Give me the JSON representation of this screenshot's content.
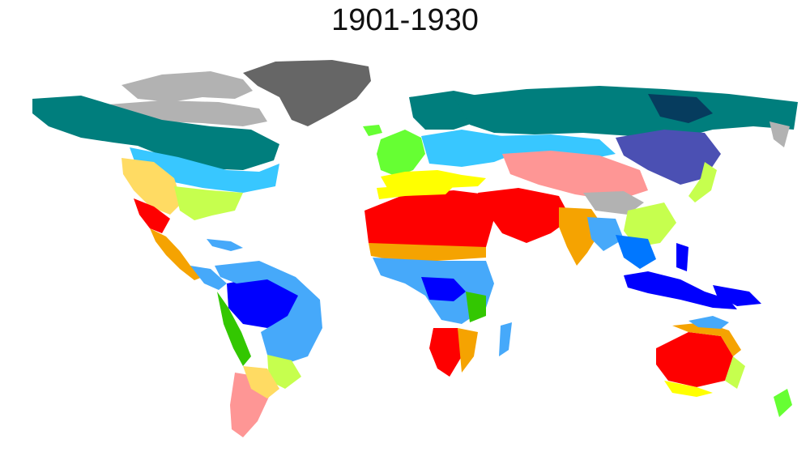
{
  "title": "1901-1930",
  "colors": {
    "background": "#ffffff",
    "tropical_rainforest": "#0000fe",
    "tropical_monsoon": "#0077ff",
    "tropical_savanna": "#46a9fa",
    "hot_desert": "#fe0000",
    "cold_desert": "#fe9695",
    "hot_steppe": "#f5a301",
    "cold_steppe": "#ffdb63",
    "mediterranean": "#ffff00",
    "humid_subtropical": "#c6ff4e",
    "oceanic": "#66ff33",
    "subtropical_highland": "#33c701",
    "hot_summer_continental": "#00ffff",
    "warm_summer_continental": "#38c7ff",
    "subarctic": "#007e7d",
    "extreme_subarctic": "#063c5e",
    "monsoon_continental": "#4b50b3",
    "dry_summer_continental": "#c800c8",
    "tundra": "#b2b2b2",
    "ice_cap": "#666666"
  }
}
